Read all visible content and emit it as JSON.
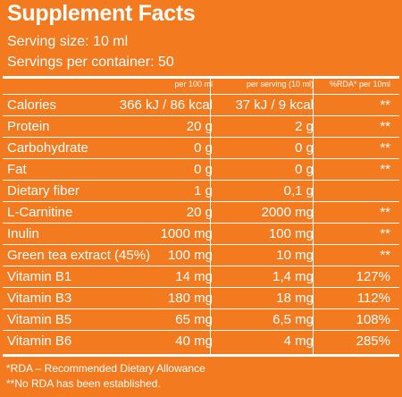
{
  "header": {
    "title": "Supplement Facts",
    "serving_size": "Serving size: 10 ml",
    "servings_per_container": "Servings per container: 50"
  },
  "columns": {
    "per100": "per 100 ml",
    "per_serving": "per serving (10 ml)",
    "rda": "%RDA* per 10ml"
  },
  "rows": [
    {
      "name": "Calories",
      "per100": "366 kJ / 86 kcal",
      "per_serving": "37 kJ / 9 kcal",
      "rda": "**"
    },
    {
      "name": "Protein",
      "per100": "20 g",
      "per_serving": "2 g",
      "rda": "**"
    },
    {
      "name": "Carbohydrate",
      "per100": "0 g",
      "per_serving": "0 g",
      "rda": "**"
    },
    {
      "name": "Fat",
      "per100": "0 g",
      "per_serving": "0 g",
      "rda": "**"
    },
    {
      "name": "Dietary fiber",
      "per100": "1 g",
      "per_serving": "0,1 g",
      "rda": ""
    },
    {
      "name": "L-Carnitine",
      "per100": "20 g",
      "per_serving": "2000 mg",
      "rda": "**"
    },
    {
      "name": "Inulin",
      "per100": "1000 mg",
      "per_serving": "100 mg",
      "rda": "**"
    },
    {
      "name": "Green tea extract (45%)",
      "per100": "100 mg",
      "per_serving": "10 mg",
      "rda": "**"
    },
    {
      "name": "Vitamin B1",
      "per100": "14 mg",
      "per_serving": "1,4 mg",
      "rda": "127%"
    },
    {
      "name": "Vitamin B3",
      "per100": "180 mg",
      "per_serving": "18 mg",
      "rda": "112%"
    },
    {
      "name": "Vitamin B5",
      "per100": "65 mg",
      "per_serving": "6,5 mg",
      "rda": "108%"
    },
    {
      "name": "Vitamin B6",
      "per100": "40 mg",
      "per_serving": "4 mg",
      "rda": "285%"
    }
  ],
  "footnotes": {
    "rda": "*RDA – Recommended Dietary Allowance",
    "no_rda": "**No RDA has been established."
  },
  "colors": {
    "background": "#f47a20",
    "text": "#ffffff"
  }
}
